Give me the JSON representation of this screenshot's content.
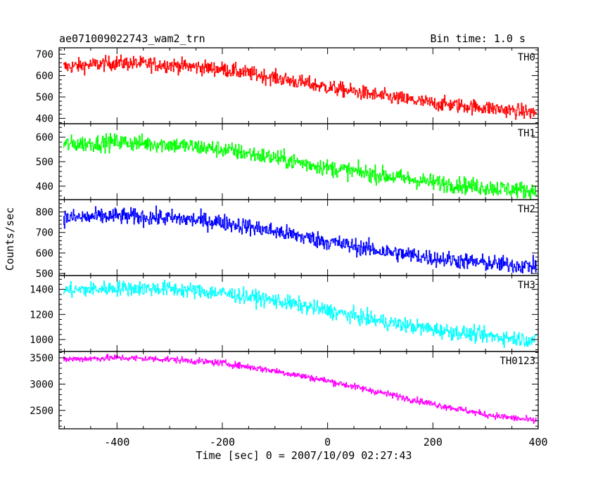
{
  "chart_data": {
    "type": "line",
    "title_left": "ae071009022743_wam2_trn",
    "title_right": "Bin time: 1.0 s",
    "xlabel": "Time [sec] 0 = 2007/10/09 02:27:43",
    "ylabel": "Counts/sec",
    "xlim": [
      -510,
      400
    ],
    "xticks": [
      -400,
      -200,
      0,
      200,
      400
    ],
    "x_start": -502,
    "x_end": 396,
    "panels": [
      {
        "name": "TH0",
        "color": "#ff0000",
        "ylim": [
          375,
          730
        ],
        "yticks": [
          400,
          500,
          600,
          700
        ],
        "noise": 34,
        "trend": [
          [
            -502,
            640
          ],
          [
            -400,
            660
          ],
          [
            -300,
            650
          ],
          [
            -200,
            630
          ],
          [
            -100,
            590
          ],
          [
            0,
            545
          ],
          [
            100,
            505
          ],
          [
            200,
            470
          ],
          [
            300,
            450
          ],
          [
            396,
            425
          ]
        ]
      },
      {
        "name": "TH1",
        "color": "#00ff00",
        "ylim": [
          345,
          655
        ],
        "yticks": [
          400,
          500,
          600
        ],
        "noise": 34,
        "trend": [
          [
            -502,
            570
          ],
          [
            -400,
            580
          ],
          [
            -300,
            570
          ],
          [
            -200,
            550
          ],
          [
            -100,
            515
          ],
          [
            0,
            475
          ],
          [
            100,
            445
          ],
          [
            200,
            415
          ],
          [
            300,
            395
          ],
          [
            396,
            380
          ]
        ]
      },
      {
        "name": "TH2",
        "color": "#0000ff",
        "ylim": [
          490,
          860
        ],
        "yticks": [
          500,
          600,
          700,
          800
        ],
        "noise": 40,
        "trend": [
          [
            -502,
            770
          ],
          [
            -400,
            780
          ],
          [
            -300,
            770
          ],
          [
            -200,
            750
          ],
          [
            -100,
            705
          ],
          [
            0,
            655
          ],
          [
            100,
            610
          ],
          [
            200,
            575
          ],
          [
            300,
            550
          ],
          [
            396,
            535
          ]
        ]
      },
      {
        "name": "TH3",
        "color": "#00ffff",
        "ylim": [
          905,
          1510
        ],
        "yticks": [
          1000,
          1200,
          1400
        ],
        "noise": 60,
        "trend": [
          [
            -502,
            1390
          ],
          [
            -400,
            1410
          ],
          [
            -300,
            1405
          ],
          [
            -200,
            1370
          ],
          [
            -100,
            1310
          ],
          [
            0,
            1230
          ],
          [
            100,
            1145
          ],
          [
            200,
            1080
          ],
          [
            300,
            1030
          ],
          [
            396,
            995
          ]
        ]
      },
      {
        "name": "TH0123",
        "color": "#ff00ff",
        "ylim": [
          2150,
          3620
        ],
        "yticks": [
          2500,
          3000,
          3500
        ],
        "noise": 60,
        "trend": [
          [
            -502,
            3470
          ],
          [
            -400,
            3500
          ],
          [
            -300,
            3470
          ],
          [
            -200,
            3400
          ],
          [
            -100,
            3250
          ],
          [
            0,
            3060
          ],
          [
            100,
            2840
          ],
          [
            200,
            2620
          ],
          [
            300,
            2420
          ],
          [
            396,
            2300
          ]
        ]
      }
    ]
  }
}
